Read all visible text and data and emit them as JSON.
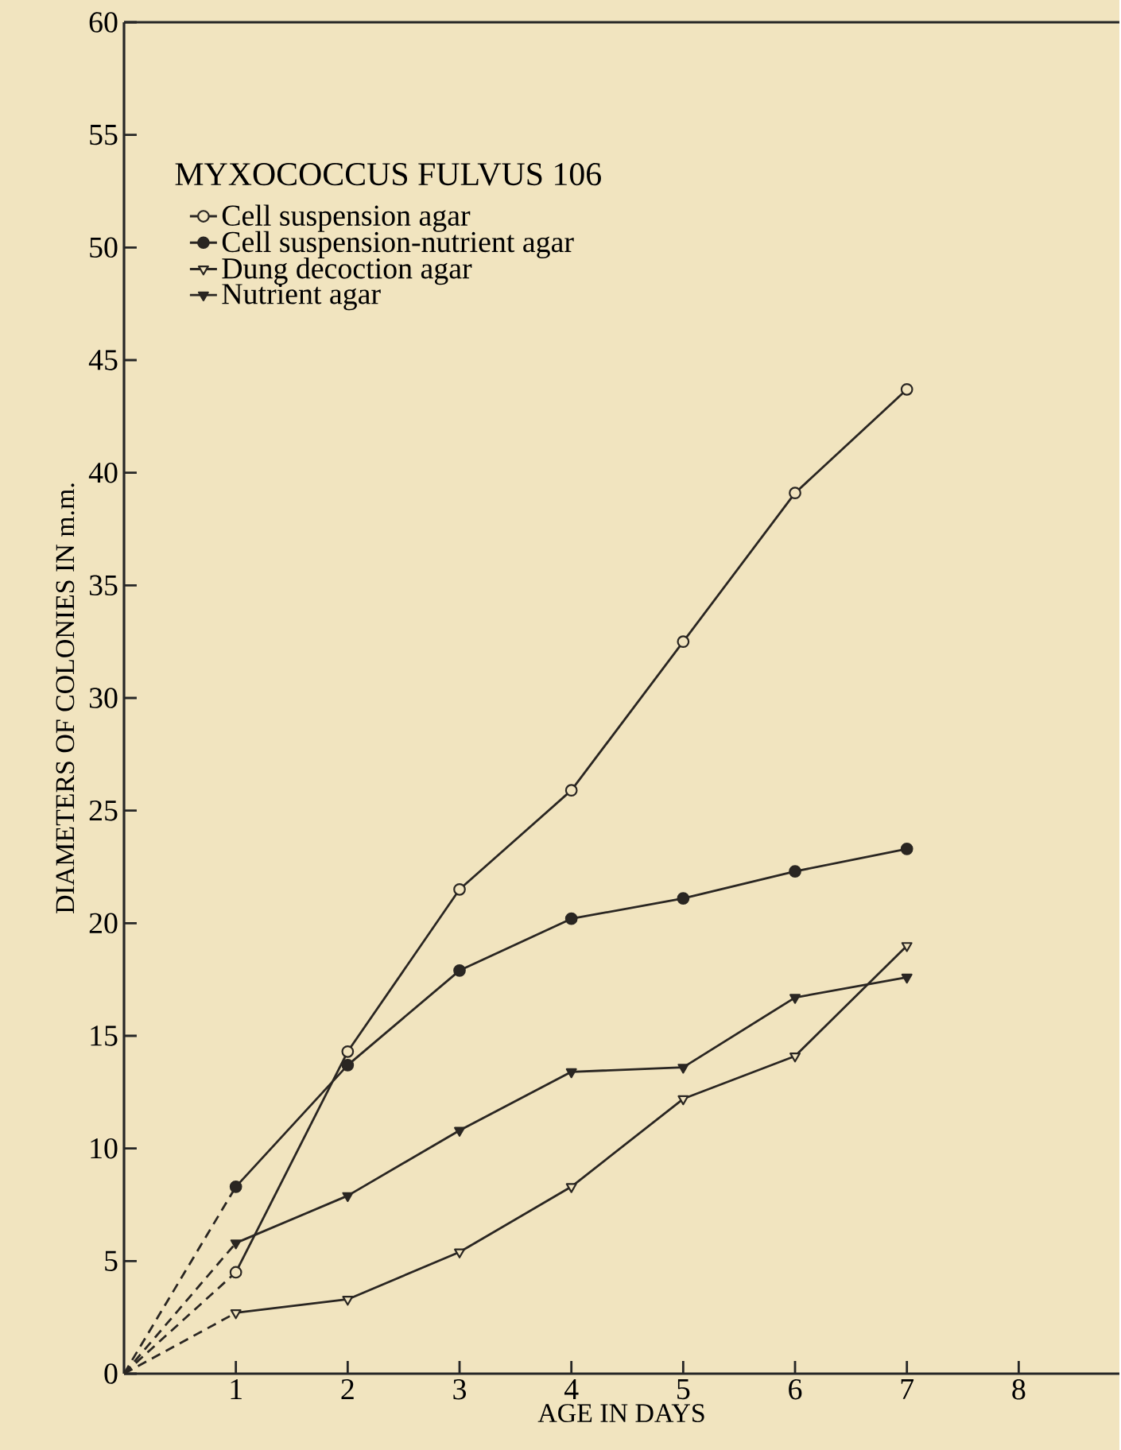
{
  "chart_data": {
    "type": "line",
    "xlabel": "AGE IN DAYS",
    "ylabel": "DIAMETERS OF COLONIES IN m.m.",
    "legend_title": "MYXOCOCCUS FULVUS 106",
    "xlim": [
      0,
      8.9
    ],
    "ylim": [
      0,
      60
    ],
    "xticks": [
      1,
      2,
      3,
      4,
      5,
      6,
      7,
      8
    ],
    "yticks": [
      0,
      5,
      10,
      15,
      20,
      25,
      30,
      35,
      40,
      45,
      50,
      55,
      60
    ],
    "legend": "top left",
    "grid": false,
    "line_style": "solid",
    "series": [
      {
        "name": "Cell suspension agar",
        "color": "#2a2622",
        "marker": "circle",
        "colors": [
          "#f1e4bf",
          "#f1e4bf",
          "#f1e4bf",
          "#f1e4bf",
          "#f1e4bf",
          "#f1e4bf",
          "#f1e4bf"
        ],
        "x": [
          1,
          2,
          3,
          4,
          5,
          6,
          7
        ],
        "values": [
          4.5,
          14.3,
          21.5,
          25.9,
          32.5,
          39.1,
          43.7
        ]
      },
      {
        "name": "Cell suspension-nutrient agar",
        "color": "#2a2622",
        "marker": "circle",
        "colors": [
          "#2a2622",
          "#2a2622",
          "#2a2622",
          "#2a2622",
          "#2a2622",
          "#2a2622",
          "#2a2622"
        ],
        "x": [
          1,
          2,
          3,
          4,
          5,
          6,
          7
        ],
        "values": [
          8.3,
          13.7,
          17.9,
          20.2,
          21.1,
          22.3,
          23.3
        ]
      },
      {
        "name": "Dung decoction agar",
        "color": "#2a2622",
        "marker": "triangle",
        "colors": [
          "#f1e4bf",
          "#f1e4bf",
          "#f1e4bf",
          "#f1e4bf",
          "#f1e4bf",
          "#f1e4bf",
          "#f1e4bf"
        ],
        "x": [
          1,
          2,
          3,
          4,
          5,
          6,
          7
        ],
        "values": [
          2.7,
          3.3,
          5.4,
          8.3,
          12.2,
          14.1,
          19.0
        ]
      },
      {
        "name": "Nutrient agar",
        "color": "#2a2622",
        "marker": "triangle",
        "colors": [
          "#2a2622",
          "#2a2622",
          "#2a2622",
          "#2a2622",
          "#2a2622",
          "#2a2622",
          "#2a2622"
        ],
        "x": [
          1,
          2,
          3,
          4,
          5,
          6,
          7
        ],
        "values": [
          5.8,
          7.9,
          10.8,
          13.4,
          13.6,
          16.7,
          17.6
        ]
      },
      {
        "color": "#2a2622",
        "marker": "none",
        "line_style": "dashed",
        "x": [
          0,
          1
        ],
        "values": [
          0,
          4.5
        ]
      },
      {
        "color": "#2a2622",
        "marker": "none",
        "line_style": "dashed",
        "x": [
          0,
          1
        ],
        "values": [
          0,
          8.3
        ]
      },
      {
        "color": "#2a2622",
        "marker": "none",
        "line_style": "dashed",
        "x": [
          0,
          1
        ],
        "values": [
          0,
          2.7
        ]
      },
      {
        "color": "#2a2622",
        "marker": "none",
        "line_style": "dashed",
        "x": [
          0,
          1
        ],
        "values": [
          0,
          5.8
        ]
      }
    ]
  }
}
